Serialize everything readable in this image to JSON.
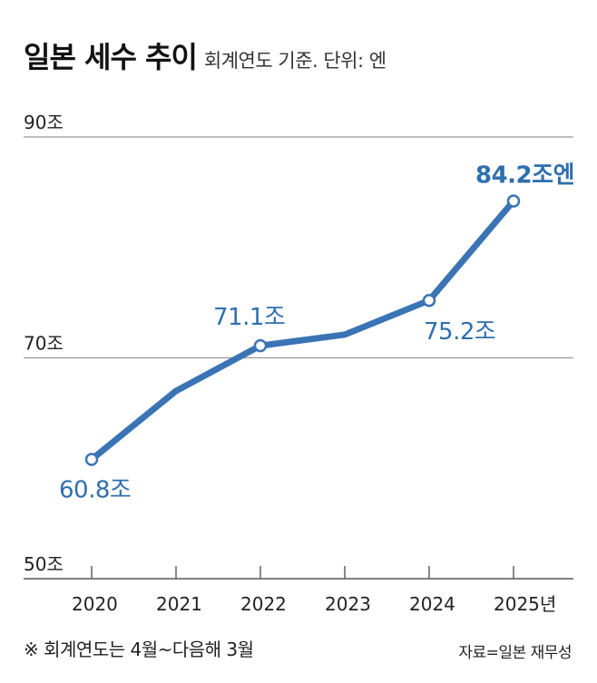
{
  "header": {
    "title": "일본 세수 추이",
    "subtitle": "회계연도 기준. 단위: 엔"
  },
  "chart_data": {
    "type": "line",
    "x": [
      "2020",
      "2021",
      "2022",
      "2023",
      "2024",
      "2025"
    ],
    "x_tick_labels": [
      "2020",
      "2021",
      "2022",
      "2023",
      "2024",
      "2025년"
    ],
    "y_tick_labels": [
      "90조",
      "70조",
      "50조"
    ],
    "y_ticks": [
      90,
      70,
      50
    ],
    "ylim": [
      50,
      90
    ],
    "series": [
      {
        "values": [
          60.8,
          67.0,
          71.1,
          72.1,
          75.2,
          84.2
        ],
        "color": "#3a74b5"
      }
    ],
    "data_labels": [
      {
        "index": 0,
        "text": "60.8조"
      },
      {
        "index": 2,
        "text": "71.1조"
      },
      {
        "index": 4,
        "text": "75.2조"
      },
      {
        "index": 5,
        "text": "84.2조엔"
      }
    ],
    "marker_indices": [
      0,
      2,
      4,
      5
    ],
    "grid": true
  },
  "footer": {
    "note": "※ 회계연도는 4월~다음해 3월",
    "source": "자료=일본 재무성"
  }
}
